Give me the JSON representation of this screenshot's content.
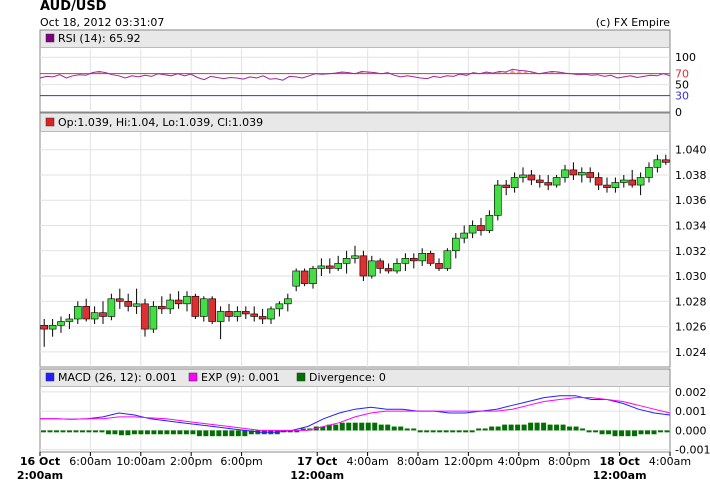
{
  "header": {
    "title": "AUD/USD",
    "datetime": "Oct 18, 2012 03:31:07",
    "source": "(c) FX Empire"
  },
  "chart_data": [
    {
      "type": "line",
      "panel": "rsi",
      "legend": "RSI (14): 65.92",
      "legend_color": "#800080",
      "y_ticks": [
        "100",
        "70",
        "50",
        "30",
        "0"
      ],
      "ylim": [
        0,
        115
      ],
      "levels": [
        {
          "value": 70,
          "color": "#e03030"
        },
        {
          "value": 30,
          "color": "#3030e0"
        }
      ],
      "series": [
        {
          "color": "#9a2a9a",
          "values": [
            62,
            65,
            64,
            68,
            62,
            66,
            68,
            67,
            72,
            74,
            72,
            68,
            66,
            62,
            66,
            64,
            67,
            65,
            70,
            68,
            66,
            70,
            66,
            69,
            63,
            59,
            65,
            63,
            61,
            63,
            62,
            60,
            64,
            62,
            66,
            60,
            61,
            58,
            65,
            64,
            62,
            66,
            70,
            69,
            70,
            71,
            73,
            72,
            70,
            74,
            73,
            72,
            70,
            72,
            67,
            64,
            66,
            64,
            62,
            61,
            65,
            63,
            66,
            65,
            69,
            67,
            72,
            70,
            73,
            71,
            74,
            73,
            78,
            76,
            75,
            73,
            70,
            72,
            74,
            73,
            71,
            70,
            68,
            69,
            67,
            68,
            65,
            67,
            62,
            64,
            66,
            63,
            65,
            67,
            66,
            70,
            66
          ]
        }
      ]
    },
    {
      "type": "candlestick",
      "panel": "price",
      "legend": "Op:1.039, Hi:1.04, Lo:1.039, Cl:1.039",
      "legend_color": "#e02020",
      "ylim": [
        1.0228,
        1.0414
      ],
      "y_ticks": [
        "1.040",
        "1.038",
        "1.036",
        "1.034",
        "1.032",
        "1.030",
        "1.028",
        "1.026",
        "1.024"
      ],
      "up_color": "#44dd44",
      "down_color": "#dd3030",
      "candles": [
        {
          "o": 1.0261,
          "h": 1.0266,
          "l": 1.0244,
          "c": 1.0258
        },
        {
          "o": 1.0258,
          "h": 1.0266,
          "l": 1.0252,
          "c": 1.0261
        },
        {
          "o": 1.0261,
          "h": 1.0268,
          "l": 1.0255,
          "c": 1.0264
        },
        {
          "o": 1.0264,
          "h": 1.027,
          "l": 1.0258,
          "c": 1.0266
        },
        {
          "o": 1.0266,
          "h": 1.028,
          "l": 1.0262,
          "c": 1.0276
        },
        {
          "o": 1.0276,
          "h": 1.0282,
          "l": 1.0264,
          "c": 1.0266
        },
        {
          "o": 1.0266,
          "h": 1.0276,
          "l": 1.0262,
          "c": 1.0271
        },
        {
          "o": 1.0271,
          "h": 1.028,
          "l": 1.0262,
          "c": 1.0268
        },
        {
          "o": 1.0268,
          "h": 1.0286,
          "l": 1.0265,
          "c": 1.0282
        },
        {
          "o": 1.0282,
          "h": 1.029,
          "l": 1.0274,
          "c": 1.028
        },
        {
          "o": 1.028,
          "h": 1.0286,
          "l": 1.0272,
          "c": 1.0276
        },
        {
          "o": 1.0276,
          "h": 1.029,
          "l": 1.027,
          "c": 1.0278
        },
        {
          "o": 1.0278,
          "h": 1.0282,
          "l": 1.0252,
          "c": 1.0258
        },
        {
          "o": 1.0258,
          "h": 1.028,
          "l": 1.0255,
          "c": 1.0276
        },
        {
          "o": 1.0276,
          "h": 1.0284,
          "l": 1.027,
          "c": 1.0274
        },
        {
          "o": 1.0274,
          "h": 1.0286,
          "l": 1.027,
          "c": 1.0281
        },
        {
          "o": 1.0281,
          "h": 1.0288,
          "l": 1.0274,
          "c": 1.0278
        },
        {
          "o": 1.0278,
          "h": 1.0288,
          "l": 1.0272,
          "c": 1.0284
        },
        {
          "o": 1.0284,
          "h": 1.0286,
          "l": 1.0266,
          "c": 1.0268
        },
        {
          "o": 1.0268,
          "h": 1.0284,
          "l": 1.0264,
          "c": 1.0282
        },
        {
          "o": 1.0282,
          "h": 1.0284,
          "l": 1.0262,
          "c": 1.0264
        },
        {
          "o": 1.0264,
          "h": 1.0276,
          "l": 1.025,
          "c": 1.0272
        },
        {
          "o": 1.0272,
          "h": 1.0278,
          "l": 1.0264,
          "c": 1.0268
        },
        {
          "o": 1.0268,
          "h": 1.0276,
          "l": 1.0264,
          "c": 1.0272
        },
        {
          "o": 1.0272,
          "h": 1.0276,
          "l": 1.0266,
          "c": 1.027
        },
        {
          "o": 1.027,
          "h": 1.0276,
          "l": 1.0264,
          "c": 1.0268
        },
        {
          "o": 1.0268,
          "h": 1.0274,
          "l": 1.0262,
          "c": 1.0266
        },
        {
          "o": 1.0266,
          "h": 1.0276,
          "l": 1.0262,
          "c": 1.0274
        },
        {
          "o": 1.0274,
          "h": 1.028,
          "l": 1.0268,
          "c": 1.0278
        },
        {
          "o": 1.0278,
          "h": 1.0286,
          "l": 1.0272,
          "c": 1.0282
        },
        {
          "o": 1.0292,
          "h": 1.0306,
          "l": 1.0288,
          "c": 1.0304
        },
        {
          "o": 1.0304,
          "h": 1.0306,
          "l": 1.0292,
          "c": 1.0294
        },
        {
          "o": 1.0294,
          "h": 1.0308,
          "l": 1.029,
          "c": 1.0306
        },
        {
          "o": 1.0306,
          "h": 1.0314,
          "l": 1.03,
          "c": 1.0308
        },
        {
          "o": 1.0308,
          "h": 1.0314,
          "l": 1.0302,
          "c": 1.0306
        },
        {
          "o": 1.0306,
          "h": 1.0316,
          "l": 1.0304,
          "c": 1.031
        },
        {
          "o": 1.031,
          "h": 1.032,
          "l": 1.0302,
          "c": 1.0314
        },
        {
          "o": 1.0314,
          "h": 1.0324,
          "l": 1.031,
          "c": 1.0316
        },
        {
          "o": 1.0316,
          "h": 1.032,
          "l": 1.0296,
          "c": 1.03
        },
        {
          "o": 1.03,
          "h": 1.0316,
          "l": 1.0298,
          "c": 1.0312
        },
        {
          "o": 1.0312,
          "h": 1.0314,
          "l": 1.0302,
          "c": 1.0306
        },
        {
          "o": 1.0306,
          "h": 1.031,
          "l": 1.0302,
          "c": 1.0304
        },
        {
          "o": 1.0304,
          "h": 1.0314,
          "l": 1.0302,
          "c": 1.031
        },
        {
          "o": 1.031,
          "h": 1.0318,
          "l": 1.0304,
          "c": 1.0314
        },
        {
          "o": 1.0314,
          "h": 1.0318,
          "l": 1.0306,
          "c": 1.0312
        },
        {
          "o": 1.0312,
          "h": 1.0322,
          "l": 1.0308,
          "c": 1.0318
        },
        {
          "o": 1.0318,
          "h": 1.032,
          "l": 1.0308,
          "c": 1.031
        },
        {
          "o": 1.031,
          "h": 1.0314,
          "l": 1.0304,
          "c": 1.0306
        },
        {
          "o": 1.0306,
          "h": 1.0322,
          "l": 1.0304,
          "c": 1.032
        },
        {
          "o": 1.032,
          "h": 1.0334,
          "l": 1.0314,
          "c": 1.033
        },
        {
          "o": 1.033,
          "h": 1.034,
          "l": 1.0326,
          "c": 1.0334
        },
        {
          "o": 1.0334,
          "h": 1.0344,
          "l": 1.033,
          "c": 1.034
        },
        {
          "o": 1.034,
          "h": 1.0346,
          "l": 1.0332,
          "c": 1.0336
        },
        {
          "o": 1.0336,
          "h": 1.0352,
          "l": 1.0334,
          "c": 1.0348
        },
        {
          "o": 1.0348,
          "h": 1.0376,
          "l": 1.0344,
          "c": 1.0372
        },
        {
          "o": 1.0372,
          "h": 1.0376,
          "l": 1.0364,
          "c": 1.037
        },
        {
          "o": 1.037,
          "h": 1.0382,
          "l": 1.0366,
          "c": 1.0378
        },
        {
          "o": 1.0378,
          "h": 1.0386,
          "l": 1.0374,
          "c": 1.038
        },
        {
          "o": 1.038,
          "h": 1.0384,
          "l": 1.0372,
          "c": 1.0376
        },
        {
          "o": 1.0376,
          "h": 1.038,
          "l": 1.037,
          "c": 1.0374
        },
        {
          "o": 1.0374,
          "h": 1.038,
          "l": 1.0368,
          "c": 1.0372
        },
        {
          "o": 1.0372,
          "h": 1.038,
          "l": 1.037,
          "c": 1.0378
        },
        {
          "o": 1.0378,
          "h": 1.0388,
          "l": 1.0374,
          "c": 1.0384
        },
        {
          "o": 1.0384,
          "h": 1.039,
          "l": 1.0376,
          "c": 1.038
        },
        {
          "o": 1.038,
          "h": 1.0386,
          "l": 1.0374,
          "c": 1.0382
        },
        {
          "o": 1.0382,
          "h": 1.0386,
          "l": 1.0374,
          "c": 1.0378
        },
        {
          "o": 1.0378,
          "h": 1.0382,
          "l": 1.0368,
          "c": 1.0372
        },
        {
          "o": 1.0372,
          "h": 1.0378,
          "l": 1.0366,
          "c": 1.037
        },
        {
          "o": 1.037,
          "h": 1.0378,
          "l": 1.0366,
          "c": 1.0374
        },
        {
          "o": 1.0374,
          "h": 1.038,
          "l": 1.037,
          "c": 1.0376
        },
        {
          "o": 1.0376,
          "h": 1.0384,
          "l": 1.037,
          "c": 1.0372
        },
        {
          "o": 1.0372,
          "h": 1.0382,
          "l": 1.0364,
          "c": 1.0378
        },
        {
          "o": 1.0378,
          "h": 1.039,
          "l": 1.0374,
          "c": 1.0386
        },
        {
          "o": 1.0386,
          "h": 1.0396,
          "l": 1.0382,
          "c": 1.0392
        },
        {
          "o": 1.0392,
          "h": 1.0396,
          "l": 1.0388,
          "c": 1.039
        }
      ]
    },
    {
      "type": "line",
      "panel": "macd",
      "legend": [
        {
          "label": "MACD (26, 12): 0.001",
          "color": "#2020ff"
        },
        {
          "label": "EXP (9): 0.001",
          "color": "#ff00ff"
        },
        {
          "label": "Divergence: 0",
          "color": "#007000"
        }
      ],
      "ylim": [
        -0.00112,
        0.00225
      ],
      "y_ticks": [
        "0.002",
        "0.001",
        "0.000",
        "-0.001"
      ],
      "series": [
        {
          "name": "MACD (26, 12): 0.001",
          "color": "#2020ff",
          "values": [
            0.0006,
            0.0006,
            0.00058,
            0.0006,
            0.0007,
            0.0009,
            0.0008,
            0.0006,
            0.0005,
            0.0004,
            0.0003,
            0.0002,
            0.0001,
            0.0,
            -0.0001,
            -0.0001,
            0.0,
            0.0002,
            0.0006,
            0.0009,
            0.0011,
            0.0012,
            0.0011,
            0.0011,
            0.001,
            0.001,
            0.0009,
            0.0009,
            0.001,
            0.0011,
            0.0013,
            0.0015,
            0.0017,
            0.0018,
            0.0018,
            0.0016,
            0.0016,
            0.0014,
            0.0011,
            0.0009,
            0.0008
          ]
        },
        {
          "name": "EXP (9): 0.001",
          "color": "#ff00ff",
          "values": [
            0.0006,
            0.0006,
            0.00058,
            0.0006,
            0.0006,
            0.0007,
            0.0007,
            0.00065,
            0.0006,
            0.0005,
            0.0004,
            0.0003,
            0.0002,
            0.0001,
            0.0,
            0.0,
            0.0,
            0.0,
            0.0002,
            0.0004,
            0.0007,
            0.0009,
            0.001,
            0.001,
            0.001,
            0.001,
            0.001,
            0.001,
            0.001,
            0.001,
            0.0011,
            0.0013,
            0.0015,
            0.0016,
            0.0017,
            0.0017,
            0.0016,
            0.0015,
            0.0013,
            0.0011,
            0.0009
          ]
        }
      ],
      "divergence": [
        -0.0001,
        -0.0001,
        -0.0001,
        -0.0001,
        -0.0001,
        -0.0001,
        -0.0001,
        -0.0001,
        -0.0001,
        -0.0001,
        -0.0002,
        -0.0002,
        -0.00025,
        -0.00025,
        -0.0002,
        -0.0002,
        -0.0002,
        -0.0002,
        -0.0002,
        -0.0002,
        -0.0002,
        -0.0002,
        -0.0002,
        -0.0002,
        -0.0003,
        -0.0003,
        -0.0003,
        -0.0003,
        -0.0003,
        -0.0003,
        -0.0003,
        -0.0003,
        -0.0002,
        -0.0002,
        -0.0002,
        -0.0002,
        -0.0002,
        -0.0001,
        -0.0001,
        -0.0001,
        0.0001,
        0.0001,
        0.0002,
        0.0002,
        0.0003,
        0.0003,
        0.0004,
        0.0004,
        0.0004,
        0.0004,
        0.0004,
        0.0004,
        0.0003,
        0.0003,
        0.0002,
        0.0002,
        0.0001,
        0.0001,
        -0.0001,
        -0.0001,
        -0.0001,
        -0.0001,
        -0.0001,
        -0.0001,
        -0.0001,
        -0.0001,
        -0.0001,
        0.0001,
        0.0001,
        0.0002,
        0.0002,
        0.0003,
        0.0003,
        0.0003,
        0.0003,
        0.0004,
        0.0004,
        0.0004,
        0.0003,
        0.0003,
        0.0003,
        0.0002,
        0.0002,
        0.0001,
        -0.0001,
        -0.0001,
        -0.0002,
        -0.0002,
        -0.0003,
        -0.0003,
        -0.0003,
        -0.0003,
        -0.0002,
        -0.0002,
        -0.0002,
        -0.0001,
        -0.0001
      ]
    }
  ],
  "x_axis": {
    "ticks": [
      {
        "label": "16 Oct",
        "label2": "2:00am",
        "bold": true,
        "t": 0
      },
      {
        "label": "6:00am",
        "t": 0.0909
      },
      {
        "label": "10:00am",
        "t": 0.1818
      },
      {
        "label": "2:00pm",
        "t": 0.2727
      },
      {
        "label": "6:00pm",
        "t": 0.3636
      },
      {
        "label": "17 Oct",
        "label2": "12:00am",
        "bold": true,
        "t": 0.5
      },
      {
        "label": "4:00am",
        "t": 0.5909
      },
      {
        "label": "8:00am",
        "t": 0.6818
      },
      {
        "label": "12:00pm",
        "t": 0.7727
      },
      {
        "label": "4:00pm",
        "t": 0.8636
      },
      {
        "label": "8:00pm",
        "t": 0.9545
      },
      {
        "label": "18 Oct",
        "label2": "12:00am",
        "bold": true,
        "t": 1.0455
      },
      {
        "label": "4:00am",
        "t": 1.1364
      }
    ]
  }
}
